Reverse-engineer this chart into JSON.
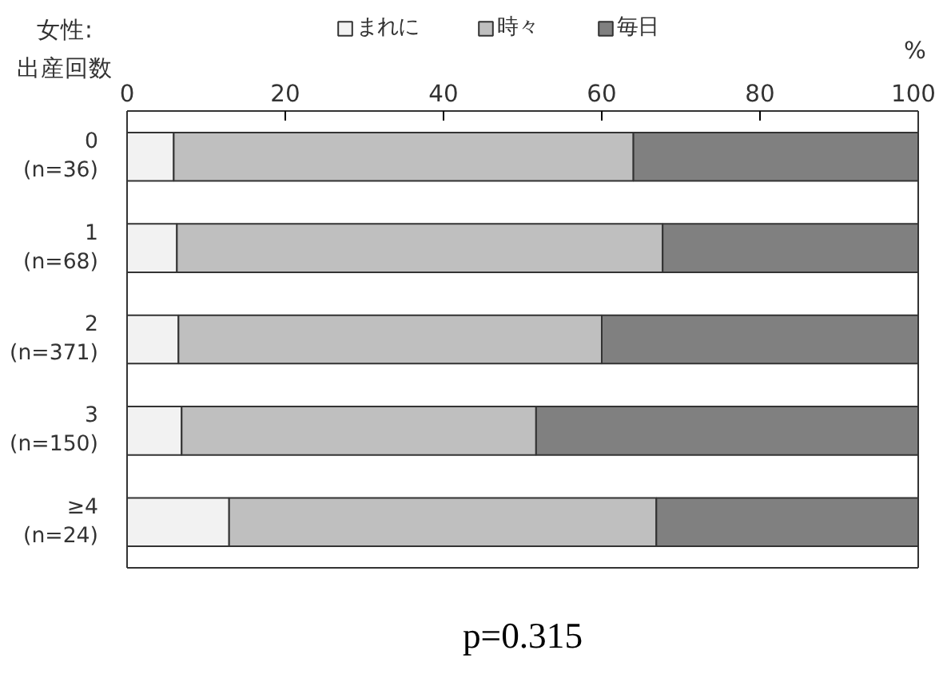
{
  "chart_data": {
    "type": "bar",
    "orientation": "horizontal",
    "stacked": true,
    "ylabel": "女性:\n出産回数",
    "xlabel": "%",
    "categories": [
      "0\n(n=36)",
      "1\n(n=68)",
      "2\n(n=371)",
      "3\n(n=150)",
      "≥4\n(n=24)"
    ],
    "series": [
      {
        "name": "まれに",
        "color": "#f2f2f2",
        "values": [
          5.9,
          6.3,
          6.5,
          6.9,
          12.9
        ]
      },
      {
        "name": "時々",
        "color": "#bfbfbf",
        "values": [
          58.1,
          61.4,
          53.5,
          44.8,
          54.0
        ]
      },
      {
        "name": "毎日",
        "color": "#808080",
        "values": [
          36.0,
          32.3,
          40.0,
          48.3,
          33.1
        ]
      }
    ],
    "xlim": [
      0,
      100
    ],
    "xticks": [
      0,
      20,
      40,
      60,
      80,
      100
    ],
    "legend": "top",
    "grid": false,
    "annotations": [
      "p=0.315"
    ]
  }
}
